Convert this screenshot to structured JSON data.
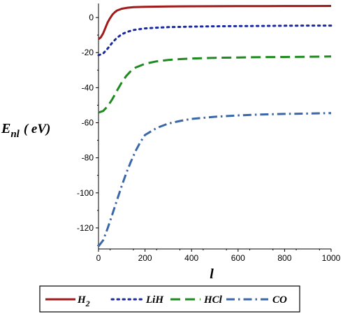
{
  "chart_data": {
    "type": "line",
    "xlabel": "l",
    "ylabel": "E",
    "ylabel_sub": "nl",
    "ylabel_unit": "( eV)",
    "xlim": [
      0,
      1000
    ],
    "ylim": [
      -132,
      8
    ],
    "x_ticks": [
      0,
      200,
      400,
      600,
      800,
      1000
    ],
    "y_ticks": [
      0,
      -20,
      -40,
      -60,
      -80,
      -100,
      -120
    ],
    "grid": false,
    "legend_position": "bottom",
    "series": [
      {
        "name": "H",
        "name_sub": "2",
        "color": "#a01a1a",
        "style": "solid",
        "x": [
          0,
          10,
          20,
          30,
          40,
          50,
          60,
          70,
          80,
          100,
          120,
          150,
          200,
          250,
          300,
          400,
          500,
          600,
          700,
          800,
          900,
          1000
        ],
        "y": [
          -12.3,
          -11.3,
          -9.0,
          -5.8,
          -2.6,
          -0.3,
          1.7,
          3.0,
          4.0,
          5.0,
          5.5,
          5.9,
          6.1,
          6.2,
          6.3,
          6.4,
          6.45,
          6.5,
          6.5,
          6.55,
          6.55,
          6.6
        ]
      },
      {
        "name": "LiH",
        "color": "#1a2a9c",
        "style": "dotted",
        "x": [
          0,
          20,
          40,
          60,
          80,
          100,
          120,
          150,
          200,
          250,
          300,
          400,
          500,
          600,
          700,
          800,
          900,
          1000
        ],
        "y": [
          -21.5,
          -20.5,
          -17.6,
          -14.2,
          -11.5,
          -9.6,
          -8.3,
          -7.1,
          -6.2,
          -5.8,
          -5.5,
          -5.2,
          -5.0,
          -4.9,
          -4.8,
          -4.7,
          -4.6,
          -4.6
        ]
      },
      {
        "name": "HCl",
        "color": "#1f8a1f",
        "style": "dashed",
        "x": [
          0,
          20,
          40,
          60,
          80,
          100,
          120,
          140,
          160,
          200,
          250,
          300,
          350,
          400,
          500,
          600,
          700,
          800,
          900,
          1000
        ],
        "y": [
          -54.2,
          -53.3,
          -50.5,
          -46.4,
          -41.6,
          -37.0,
          -33.2,
          -30.4,
          -28.5,
          -26.4,
          -25.0,
          -24.2,
          -23.7,
          -23.4,
          -23.0,
          -22.8,
          -22.6,
          -22.5,
          -22.4,
          -22.2
        ]
      },
      {
        "name": "CO",
        "color": "#3a67a8",
        "style": "dashdot",
        "x": [
          0,
          20,
          40,
          60,
          80,
          100,
          120,
          140,
          160,
          180,
          200,
          250,
          300,
          350,
          400,
          500,
          600,
          700,
          800,
          900,
          1000
        ],
        "y": [
          -130.5,
          -127.0,
          -120.0,
          -112.0,
          -104.0,
          -96.0,
          -88.5,
          -82.0,
          -76.0,
          -71.0,
          -67.0,
          -63.0,
          -60.5,
          -59.0,
          -57.8,
          -56.6,
          -55.8,
          -55.3,
          -55.0,
          -54.8,
          -54.5
        ]
      }
    ]
  }
}
